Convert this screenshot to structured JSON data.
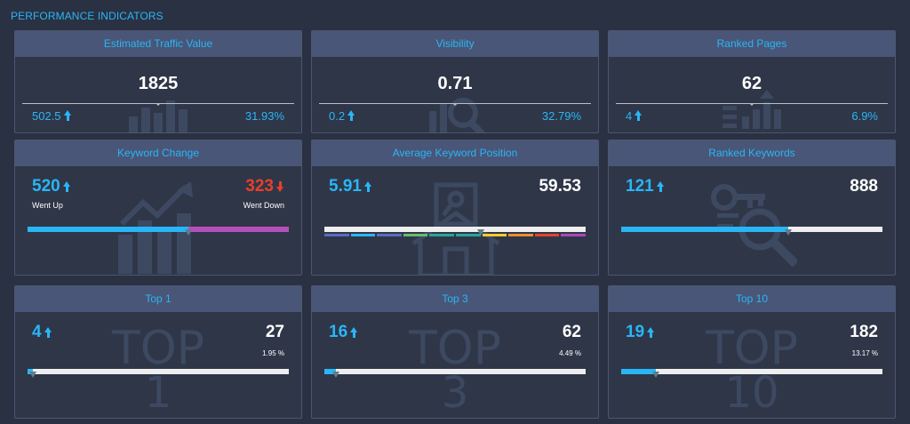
{
  "page": {
    "title": "PERFORMANCE INDICATORS"
  },
  "colors": {
    "accent": "#29b6f6",
    "down": "#e8402a",
    "purple": "#b64fbe",
    "card_header": "#4a5677",
    "card_bg": "#2f3648"
  },
  "traffic": {
    "title": "Estimated Traffic Value",
    "value": "1825",
    "change": "502.5",
    "percent": "31.93%",
    "icon": "bar-chart-icon"
  },
  "visibility": {
    "title": "Visibility",
    "value": "0.71",
    "change": "0.2",
    "percent": "32.79%",
    "icon": "magnifier-chart-icon"
  },
  "ranked_pages": {
    "title": "Ranked Pages",
    "value": "62",
    "change": "4",
    "percent": "6.9%",
    "icon": "pages-chart-icon"
  },
  "keyword_change": {
    "title": "Keyword Change",
    "up_value": "520",
    "up_label": "Went Up",
    "down_value": "323",
    "down_label": "Went Down",
    "up_fraction": 0.617,
    "icon": "trend-chart-icon"
  },
  "avg_position": {
    "title": "Average Keyword Position",
    "value": "5.91",
    "total": "59.53",
    "fraction": 0.6,
    "segment_colors": [
      "#5c6bc0",
      "#29b6f6",
      "#5c6bc0",
      "#66bb6a",
      "#26a69a",
      "#26a69a",
      "#ffca28",
      "#ef8c2b",
      "#e8402a",
      "#ab47bc"
    ],
    "icon": "house-key-icon"
  },
  "ranked_keywords": {
    "title": "Ranked Keywords",
    "value": "121",
    "total": "888",
    "fraction": 0.64,
    "icon": "key-search-icon"
  },
  "top1": {
    "title": "Top 1",
    "value": "4",
    "total": "27",
    "percent": "1.95 %",
    "fraction": 0.0195,
    "watermark": "TOP",
    "watermark_num": "1"
  },
  "top3": {
    "title": "Top 3",
    "value": "16",
    "total": "62",
    "percent": "4.49 %",
    "fraction": 0.0449,
    "watermark": "TOP",
    "watermark_num": "3"
  },
  "top10": {
    "title": "Top 10",
    "value": "19",
    "total": "182",
    "percent": "13.17 %",
    "fraction": 0.1317,
    "watermark": "TOP",
    "watermark_num": "10"
  }
}
